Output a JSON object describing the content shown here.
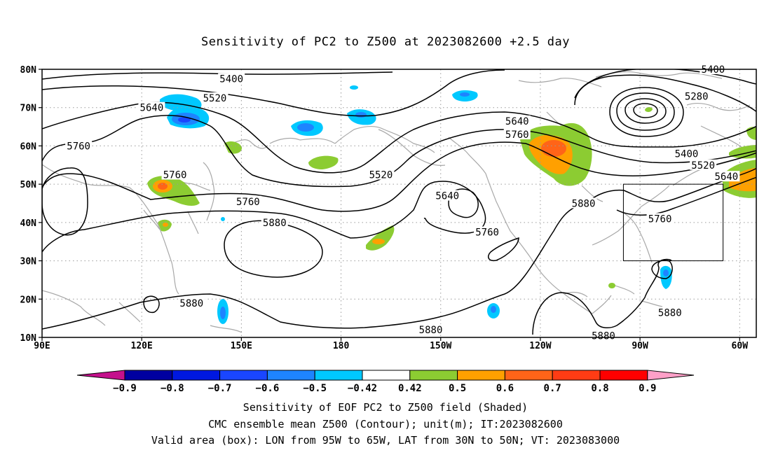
{
  "title": "Sensitivity of PC2 to Z500 at 2023082600 +2.5 day",
  "map": {
    "lon_range": [
      90,
      305
    ],
    "lat_range": [
      10,
      80
    ],
    "lat_ticks": [
      {
        "lat": 80,
        "label": "80N"
      },
      {
        "lat": 70,
        "label": "70N"
      },
      {
        "lat": 60,
        "label": "60N"
      },
      {
        "lat": 50,
        "label": "50N"
      },
      {
        "lat": 40,
        "label": "40N"
      },
      {
        "lat": 30,
        "label": "30N"
      },
      {
        "lat": 20,
        "label": "20N"
      },
      {
        "lat": 10,
        "label": "10N"
      }
    ],
    "lon_ticks": [
      {
        "lon": 90,
        "label": "90E"
      },
      {
        "lon": 120,
        "label": "120E"
      },
      {
        "lon": 150,
        "label": "150E"
      },
      {
        "lon": 180,
        "label": "180"
      },
      {
        "lon": 210,
        "label": "150W"
      },
      {
        "lon": 240,
        "label": "120W"
      },
      {
        "lon": 270,
        "label": "90W"
      },
      {
        "lon": 300,
        "label": "60W"
      }
    ],
    "valid_box": {
      "lon_min": 265,
      "lon_max": 295,
      "lat_min": 30,
      "lat_max": 50
    },
    "contour_labels": [
      {
        "text": "5400",
        "lon": 147,
        "lat": 77.5
      },
      {
        "text": "5520",
        "lon": 142,
        "lat": 72.5
      },
      {
        "text": "5640",
        "lon": 123,
        "lat": 70
      },
      {
        "text": "5760",
        "lon": 101,
        "lat": 60
      },
      {
        "text": "5760",
        "lon": 130,
        "lat": 52.5
      },
      {
        "text": "5760",
        "lon": 152,
        "lat": 45.5
      },
      {
        "text": "5880",
        "lon": 160,
        "lat": 40
      },
      {
        "text": "5520",
        "lon": 192,
        "lat": 52.5
      },
      {
        "text": "5640",
        "lon": 212,
        "lat": 47
      },
      {
        "text": "5640",
        "lon": 233,
        "lat": 66.5
      },
      {
        "text": "5760",
        "lon": 233,
        "lat": 63
      },
      {
        "text": "5760",
        "lon": 224,
        "lat": 37.5
      },
      {
        "text": "5880",
        "lon": 253,
        "lat": 45
      },
      {
        "text": "5880",
        "lon": 135,
        "lat": 19
      },
      {
        "text": "5880",
        "lon": 207,
        "lat": 12
      },
      {
        "text": "5880",
        "lon": 279,
        "lat": 16.5
      },
      {
        "text": "5880",
        "lon": 259,
        "lat": 10.5
      },
      {
        "text": "5400",
        "lon": 292,
        "lat": 80
      },
      {
        "text": "5280",
        "lon": 287,
        "lat": 73
      },
      {
        "text": "5400",
        "lon": 284,
        "lat": 58
      },
      {
        "text": "5520",
        "lon": 289,
        "lat": 55
      },
      {
        "text": "5640",
        "lon": 296,
        "lat": 52
      },
      {
        "text": "5760",
        "lon": 276,
        "lat": 41
      }
    ]
  },
  "colorbar": {
    "labels": [
      "−0.9",
      "−0.8",
      "−0.7",
      "−0.6",
      "−0.5",
      "−0.42",
      "0.42",
      "0.5",
      "0.6",
      "0.7",
      "0.8",
      "0.9"
    ],
    "left_arrow_color": "#c4118c",
    "bins": [
      "#0000a0",
      "#0018e0",
      "#1a46ff",
      "#1e84ff",
      "#00c8ff",
      "#ffffff",
      "#8ccc32",
      "#ffa000",
      "#ff6418",
      "#ff3c14",
      "#ff0000"
    ],
    "right_arrow_color": "#ffa0c8"
  },
  "captions": {
    "line1": "Sensitivity of EOF PC2 to Z500 field (Shaded)",
    "line2": "CMC ensemble mean Z500 (Contour); unit(m); IT:2023082600",
    "line3": "Valid area (box): LON from 95W to 65W, LAT from 30N to 50N; VT: 2023083000"
  }
}
